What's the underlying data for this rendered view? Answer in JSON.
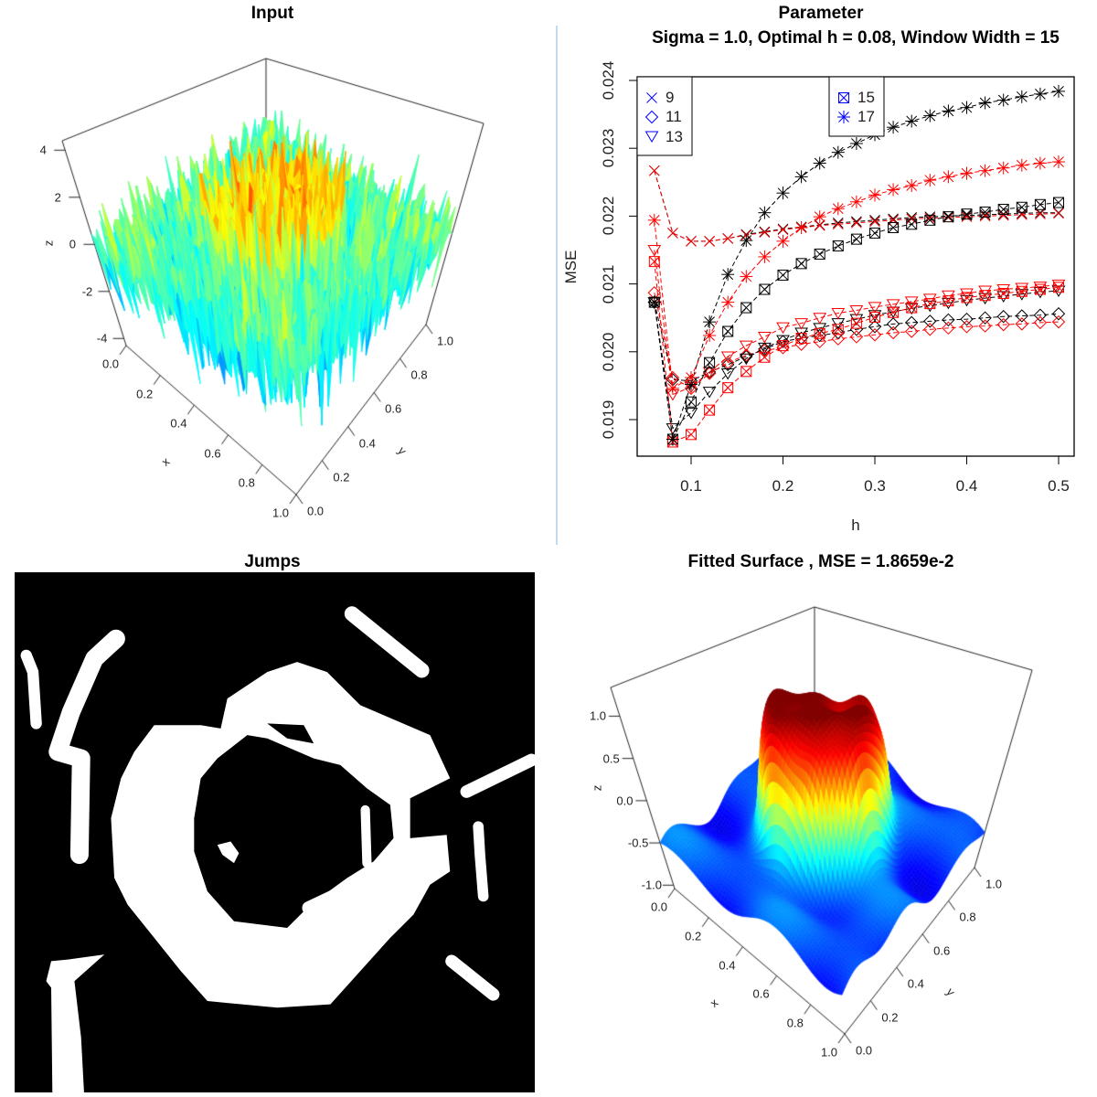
{
  "panels": {
    "input": {
      "title": "Input",
      "x_ticks": [
        "0.0",
        "0.2",
        "0.4",
        "0.6",
        "0.8",
        "1.0"
      ],
      "y_ticks": [
        "0.0",
        "0.2",
        "0.4",
        "0.6",
        "0.8",
        "1.0"
      ],
      "z_ticks": [
        "-4",
        "-2",
        "0",
        "2",
        "4"
      ],
      "xlabel": "x",
      "ylabel": "y",
      "zlabel": "z",
      "colormap": "jet"
    },
    "jumps": {
      "title": "Jumps",
      "background": "#000000",
      "foreground": "#ffffff"
    },
    "fitted": {
      "title": "Fitted Surface , MSE = 1.8659e-2",
      "x_ticks": [
        "0.0",
        "0.2",
        "0.4",
        "0.6",
        "0.8",
        "1.0"
      ],
      "y_ticks": [
        "0.0",
        "0.2",
        "0.4",
        "0.6",
        "0.8",
        "1.0"
      ],
      "z_ticks": [
        "-1.0",
        "-0.5",
        "0.0",
        "0.5",
        "1.0"
      ],
      "xlabel": "x",
      "ylabel": "y",
      "zlabel": "z",
      "colormap": "jet"
    }
  },
  "chart_data": {
    "type": "line",
    "title": "Parameter",
    "subtitle": "Sigma = 1.0, Optimal h = 0.08, Window Width = 15",
    "xlabel": "h",
    "ylabel": "MSE",
    "xlim": [
      0.06,
      0.5
    ],
    "ylim": [
      0.0186,
      0.0241
    ],
    "x_ticks": [
      {
        "v": 0.1,
        "label": "0.1"
      },
      {
        "v": 0.2,
        "label": "0.2"
      },
      {
        "v": 0.3,
        "label": "0.3"
      },
      {
        "v": 0.4,
        "label": "0.4"
      },
      {
        "v": 0.5,
        "label": "0.5"
      }
    ],
    "y_ticks": [
      {
        "v": 0.019,
        "label": "0.019"
      },
      {
        "v": 0.02,
        "label": "0.020"
      },
      {
        "v": 0.021,
        "label": "0.021"
      },
      {
        "v": 0.022,
        "label": "0.022"
      },
      {
        "v": 0.023,
        "label": "0.023"
      },
      {
        "v": 0.024,
        "label": "0.024"
      }
    ],
    "grid": false,
    "legend": {
      "color": "#0000ff",
      "groups": [
        {
          "placement": "top-left",
          "entries": [
            {
              "label": "9",
              "symbol": "cross"
            },
            {
              "label": "11",
              "symbol": "diamond"
            },
            {
              "label": "13",
              "symbol": "triangle-down"
            }
          ]
        },
        {
          "placement": "top-center",
          "entries": [
            {
              "label": "15",
              "symbol": "boxed-x"
            },
            {
              "label": "17",
              "symbol": "asterisk"
            }
          ]
        }
      ]
    },
    "x": [
      0.06,
      0.08,
      0.1,
      0.12,
      0.14,
      0.16,
      0.18,
      0.2,
      0.22,
      0.24,
      0.26,
      0.28,
      0.3,
      0.32,
      0.34,
      0.36,
      0.38,
      0.4,
      0.42,
      0.44,
      0.46,
      0.48,
      0.5
    ],
    "series": [
      {
        "window": "9",
        "symbol": "cross",
        "color": "#000000",
        "values": [
          0.02267,
          0.02175,
          0.02163,
          0.02163,
          0.02167,
          0.02173,
          0.02177,
          0.02181,
          0.02184,
          0.02187,
          0.0219,
          0.02192,
          0.02194,
          0.02196,
          0.02198,
          0.02199,
          0.022,
          0.02201,
          0.02202,
          0.02203,
          0.02204,
          0.02205,
          0.02205
        ]
      },
      {
        "window": "9",
        "symbol": "cross",
        "color": "#ff0000",
        "values": [
          0.02267,
          0.02175,
          0.02163,
          0.02163,
          0.02167,
          0.02172,
          0.02176,
          0.0218,
          0.02183,
          0.02186,
          0.02188,
          0.0219,
          0.02192,
          0.02194,
          0.02196,
          0.02197,
          0.02198,
          0.02199,
          0.022,
          0.02201,
          0.02202,
          0.02203,
          0.02204
        ]
      },
      {
        "window": "11",
        "symbol": "diamond",
        "color": "#000000",
        "values": [
          0.02073,
          0.01959,
          0.01957,
          0.0197,
          0.01981,
          0.01993,
          0.02004,
          0.02015,
          0.0202,
          0.02024,
          0.02028,
          0.02033,
          0.02037,
          0.02041,
          0.02043,
          0.02045,
          0.02047,
          0.02048,
          0.0205,
          0.02052,
          0.02053,
          0.02054,
          0.02056
        ]
      },
      {
        "window": "11",
        "symbol": "diamond",
        "color": "#ff0000",
        "values": [
          0.02087,
          0.01962,
          0.01946,
          0.01968,
          0.01984,
          0.01995,
          0.02002,
          0.02006,
          0.02011,
          0.02015,
          0.02019,
          0.02022,
          0.02025,
          0.02028,
          0.0203,
          0.02033,
          0.02035,
          0.02037,
          0.02038,
          0.0204,
          0.02041,
          0.02043,
          0.02044
        ]
      },
      {
        "window": "13",
        "symbol": "triangle-down",
        "color": "#000000",
        "values": [
          0.02073,
          0.01887,
          0.0191,
          0.01941,
          0.01968,
          0.0199,
          0.02006,
          0.02017,
          0.02028,
          0.02035,
          0.02042,
          0.02048,
          0.02054,
          0.02059,
          0.02064,
          0.02068,
          0.02072,
          0.02076,
          0.02079,
          0.02082,
          0.02085,
          0.02088,
          0.0209
        ]
      },
      {
        "window": "13",
        "symbol": "triangle-down",
        "color": "#ff0000",
        "values": [
          0.0215,
          0.01937,
          0.01948,
          0.0197,
          0.01993,
          0.02009,
          0.02022,
          0.02036,
          0.02042,
          0.0205,
          0.02057,
          0.02061,
          0.02066,
          0.0207,
          0.02074,
          0.02078,
          0.02083,
          0.02086,
          0.0209,
          0.02092,
          0.02094,
          0.02096,
          0.02099
        ]
      },
      {
        "window": "15",
        "symbol": "boxed-x",
        "color": "#000000",
        "values": [
          0.02073,
          0.01871,
          0.01926,
          0.01984,
          0.0203,
          0.02065,
          0.02092,
          0.02113,
          0.0213,
          0.02144,
          0.02156,
          0.02166,
          0.02175,
          0.02183,
          0.02188,
          0.02194,
          0.02199,
          0.02203,
          0.02206,
          0.0221,
          0.02213,
          0.02217,
          0.0222
        ]
      },
      {
        "window": "15",
        "symbol": "boxed-x",
        "color": "#ff0000",
        "values": [
          0.02133,
          0.01867,
          0.01878,
          0.01914,
          0.01947,
          0.01971,
          0.01992,
          0.02009,
          0.0202,
          0.02027,
          0.02033,
          0.02042,
          0.02051,
          0.02058,
          0.02065,
          0.02071,
          0.02075,
          0.0208,
          0.02083,
          0.02086,
          0.02089,
          0.02092,
          0.02095
        ]
      },
      {
        "window": "17",
        "symbol": "asterisk",
        "color": "#000000",
        "values": [
          0.02073,
          0.01871,
          0.01952,
          0.02044,
          0.02114,
          0.02164,
          0.02205,
          0.02234,
          0.02258,
          0.02278,
          0.02294,
          0.02307,
          0.0232,
          0.02331,
          0.0234,
          0.02348,
          0.02355,
          0.0236,
          0.02367,
          0.02371,
          0.02376,
          0.0238,
          0.02384
        ]
      },
      {
        "window": "17",
        "symbol": "asterisk",
        "color": "#ff0000",
        "values": [
          0.02194,
          0.01946,
          0.01962,
          0.02024,
          0.02073,
          0.02111,
          0.0214,
          0.02163,
          0.02183,
          0.02199,
          0.02211,
          0.02221,
          0.02231,
          0.02239,
          0.02245,
          0.02253,
          0.02258,
          0.02263,
          0.02267,
          0.02271,
          0.02275,
          0.02278,
          0.0228
        ]
      }
    ]
  }
}
